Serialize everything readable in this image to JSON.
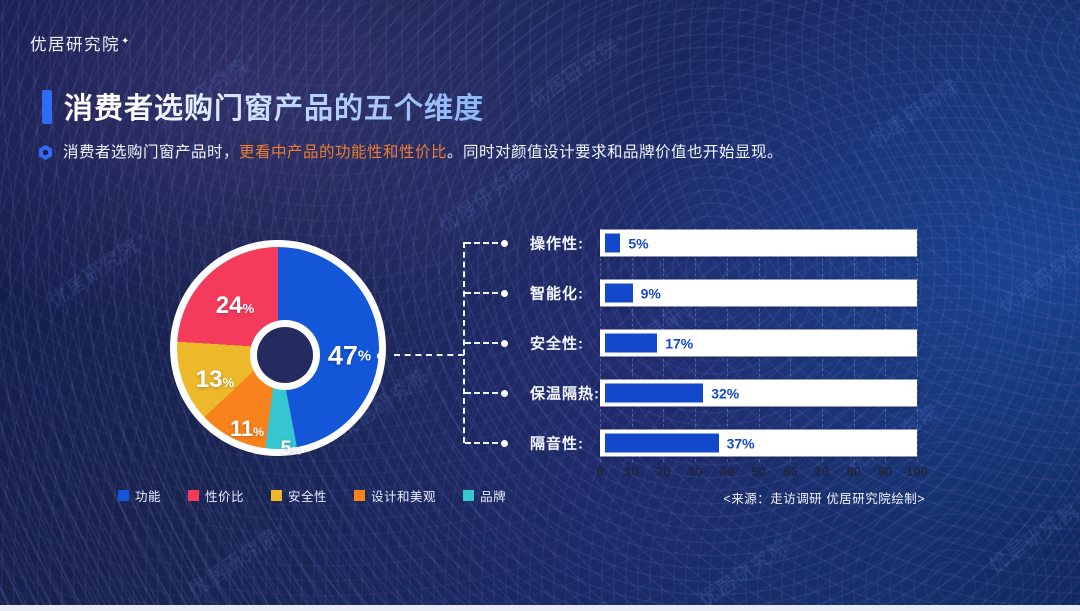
{
  "page": {
    "logo": "优居研究院",
    "logo_sparkle": "✦",
    "watermark": "优居研究院⁺",
    "title": "消费者选购门窗产品的五个维度",
    "subtitle_part1": "消费者选购门窗产品时，",
    "subtitle_highlight": "更看中产品的功能性和性价比",
    "subtitle_part2": "。同时对颜值设计要求和品牌价值也开始显现。",
    "source": "<来源：走访调研 优居研究院绘制>"
  },
  "colors": {
    "accent_blue": "#2e6cf6",
    "highlight_orange": "#ed7d31",
    "bar_blue": "#1348cb",
    "background_navy": "#18244f"
  },
  "chart_data": [
    {
      "type": "pie",
      "subtype": "donut",
      "categories": [
        "功能",
        "性价比",
        "安全性",
        "设计和美观",
        "品牌"
      ],
      "values": [
        47,
        24,
        13,
        11,
        5
      ],
      "unit": "%",
      "colors": [
        "#1356d8",
        "#f43b5c",
        "#edb829",
        "#f8821c",
        "#35c6cf"
      ],
      "clockwise_order_from_top": [
        "功能",
        "品牌",
        "设计和美观",
        "安全性",
        "性价比"
      ],
      "legend_position": "bottom"
    },
    {
      "type": "bar",
      "orientation": "horizontal",
      "categories": [
        "操作性",
        "智能化",
        "安全性",
        "保温隔热",
        "隔音性"
      ],
      "categories_display": [
        "操作性:",
        "智能化:",
        "安全性:",
        "保温隔热:",
        "隔音性:"
      ],
      "values": [
        5,
        9,
        17,
        32,
        37
      ],
      "value_labels": [
        "5%",
        "9%",
        "17%",
        "32%",
        "37%"
      ],
      "x_ticks": [
        0,
        10,
        20,
        30,
        40,
        50,
        60,
        70,
        80,
        90,
        100
      ],
      "xlim": [
        0,
        100
      ],
      "grid": true,
      "bar_color": "#1348cb",
      "track_color": "#ffffff"
    }
  ]
}
